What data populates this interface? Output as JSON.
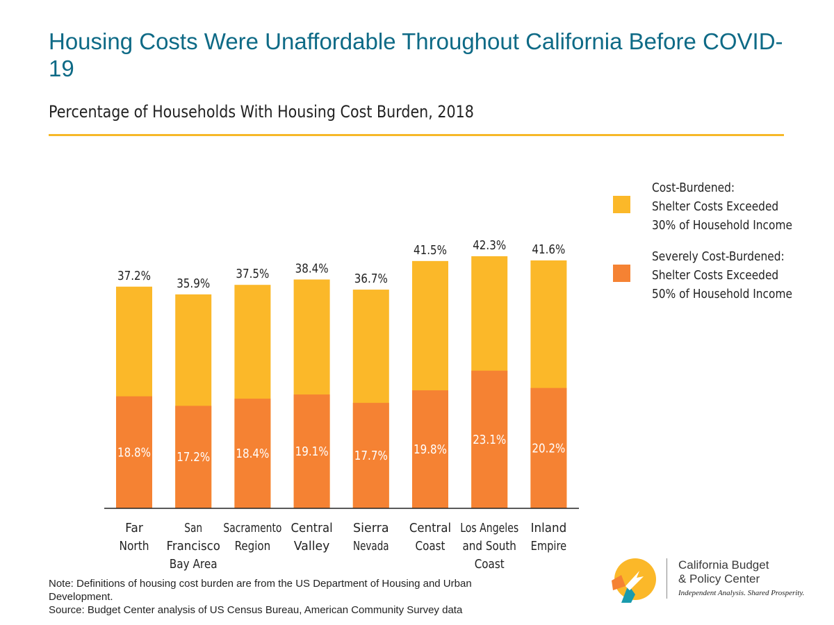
{
  "header": {
    "title": "Housing Costs Were Unaffordable Throughout California Before COVID-19",
    "subtitle": "Percentage of Households With Housing Cost Burden, 2018"
  },
  "legend": {
    "items": [
      {
        "name": "cost-burdened",
        "label": "Cost-Burdened:\nShelter Costs Exceeded\n30% of Household Income",
        "color": "#fbb829"
      },
      {
        "name": "severely-cost-burdened",
        "label": "Severely Cost-Burdened:\nShelter Costs Exceeded\n50% of Household Income",
        "color": "#f58233"
      }
    ]
  },
  "chart_data": {
    "type": "bar",
    "stacked": "overlay",
    "categories": [
      "Far\nNorth",
      "San\nFrancisco\nBay Area",
      "Sacramento\nRegion",
      "Central\nValley",
      "Sierra\nNevada",
      "Central\nCoast",
      "Los Angeles\nand South\nCoast",
      "Inland\nEmpire"
    ],
    "series": [
      {
        "name": "Cost-Burdened: Shelter Costs Exceeded 30% of Household Income",
        "values": [
          37.2,
          35.9,
          37.5,
          38.4,
          36.7,
          41.5,
          42.3,
          41.6
        ],
        "color": "#fbb829"
      },
      {
        "name": "Severely Cost-Burdened: Shelter Costs Exceeded 50% of Household Income",
        "values": [
          18.8,
          17.2,
          18.4,
          19.1,
          17.7,
          19.8,
          23.1,
          20.2
        ],
        "color": "#f58233"
      }
    ],
    "data_labels": {
      "cost_burdened": [
        "37.2%",
        "35.9%",
        "37.5%",
        "38.4%",
        "36.7%",
        "41.5%",
        "42.3%",
        "41.6%"
      ],
      "severely_cost_burdened": [
        "18.8%",
        "17.2%",
        "18.4%",
        "19.1%",
        "17.7%",
        "19.8%",
        "23.1%",
        "20.2%"
      ]
    },
    "ylim": [
      0,
      45
    ],
    "grid": false,
    "legend_position": "right"
  },
  "notes": {
    "note": "Note: Definitions of housing cost burden are from the US Department of Housing and Urban Development.",
    "source": "Source: Budget Center analysis of US Census Bureau, American Community Survey data"
  },
  "logo": {
    "name_line1": "California Budget",
    "name_line2": "& Policy Center",
    "tagline": "Independent Analysis. Shared Prosperity.",
    "colors": [
      "#fbb829",
      "#f58233",
      "#1a9bad"
    ]
  }
}
